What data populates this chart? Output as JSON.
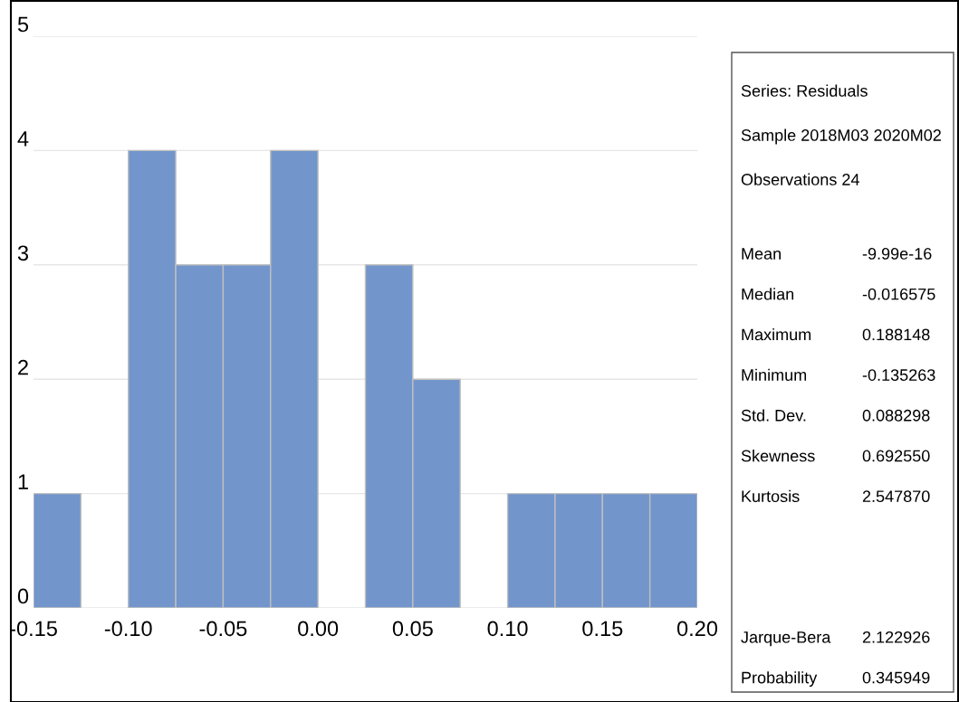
{
  "chart_data": {
    "type": "histogram",
    "bins": [
      -0.15,
      -0.125,
      -0.1,
      -0.075,
      -0.05,
      -0.025,
      0.0,
      0.025,
      0.05,
      0.075,
      0.1,
      0.125,
      0.15,
      0.175,
      0.2
    ],
    "values": [
      1,
      0,
      4,
      3,
      3,
      4,
      0,
      3,
      2,
      0,
      1,
      1,
      1,
      1
    ],
    "color": "#7295cb",
    "xlim": [
      -0.15,
      0.2
    ],
    "xticks": [
      {
        "value": -0.15,
        "label": "-0.15"
      },
      {
        "value": -0.1,
        "label": "-0.10"
      },
      {
        "value": -0.05,
        "label": "-0.05"
      },
      {
        "value": 0.0,
        "label": "0.00"
      },
      {
        "value": 0.05,
        "label": "0.05"
      },
      {
        "value": 0.1,
        "label": "0.10"
      },
      {
        "value": 0.15,
        "label": "0.15"
      },
      {
        "value": 0.2,
        "label": "0.20"
      }
    ],
    "ylim": [
      0,
      5
    ],
    "yticks": [
      0,
      1,
      2,
      3,
      4,
      5
    ],
    "grid": "y",
    "annotations": [
      "Series: Residuals",
      "Sample 2018M03 2020M02",
      "Observations 24",
      "Mean",
      "-9.99e-16",
      "Median",
      "-0.016575",
      "Maximum",
      "0.188148",
      "Minimum",
      "-0.135263",
      "Std. Dev.",
      "0.088298",
      "Skewness",
      "0.692550",
      "Kurtosis",
      "2.547870",
      "Jarque-Bera",
      "2.122926",
      "Probability",
      "0.345949"
    ]
  }
}
